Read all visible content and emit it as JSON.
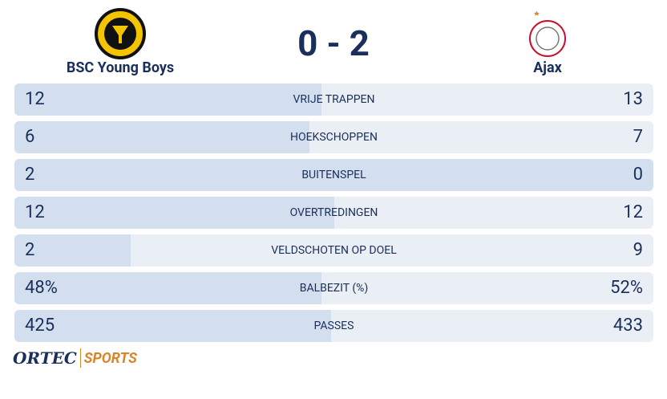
{
  "header": {
    "home_team": "BSC Young Boys",
    "score": "0 - 2",
    "away_team": "Ajax"
  },
  "stats": [
    {
      "label": "VRIJE TRAPPEN",
      "home": 12,
      "away": 13
    },
    {
      "label": "HOEKSCHOPPEN",
      "home": 6,
      "away": 7
    },
    {
      "label": "BUITENSPEL",
      "home": 2,
      "away": 0
    },
    {
      "label": "OVERTREDINGEN",
      "home": 12,
      "away": 12
    },
    {
      "label": "VELDSCHOTEN OP DOEL",
      "home": 2,
      "away": 9
    },
    {
      "label": "BALBEZIT (%)",
      "home": 48,
      "away": 52,
      "home_label": "48%",
      "away_label": "52%"
    },
    {
      "label": "PASSES",
      "home": 425,
      "away": 433
    }
  ],
  "footer": {
    "brand": "ORTEC",
    "brand_sub": "SPORTS"
  }
}
